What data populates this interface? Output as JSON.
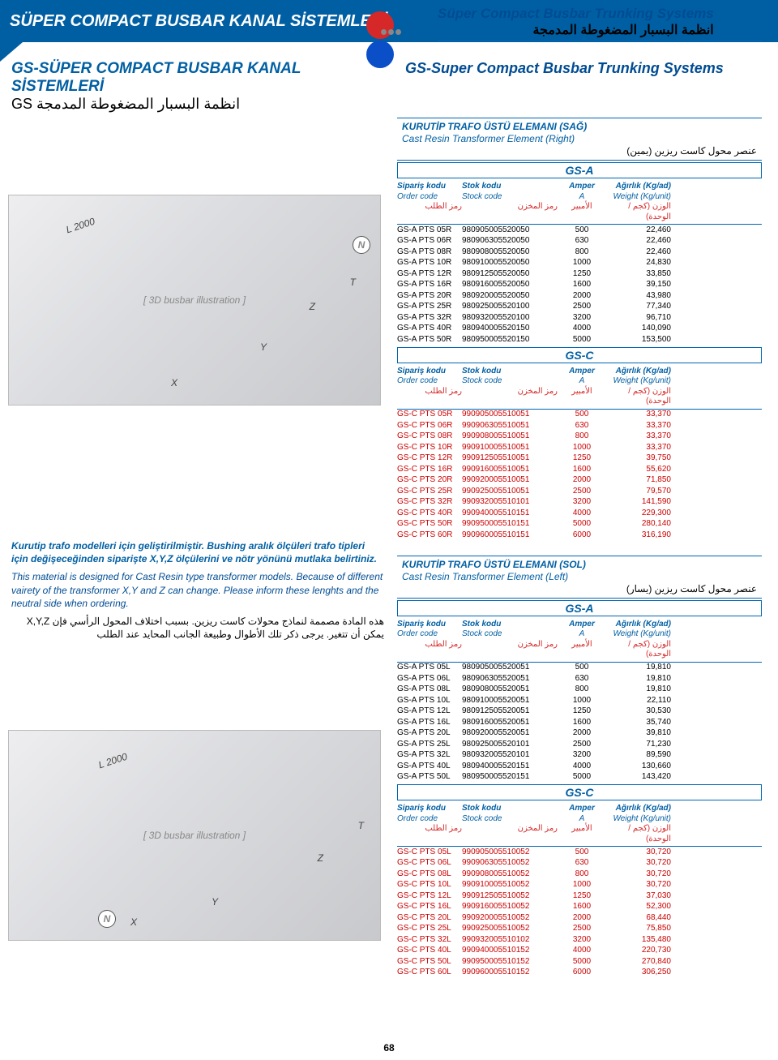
{
  "top_title": "SÜPER COMPACT BUSBAR KANAL SİSTEMLERİ",
  "right_top_en": "Süper Compact Busbar Trunking Systems",
  "right_top_ar": "انظمة البسبار المضغوطة المدمجة",
  "header_left_tr": "GS-SÜPER COMPACT BUSBAR KANAL SİSTEMLERİ",
  "header_left_ar": "انظمة البسبار المضغوطة المدمجة GS",
  "header_right_en": "GS-Super Compact Busbar Trunking Systems",
  "page_number": "68",
  "colors": {
    "brand_blue": "#005fa3",
    "dark_blue": "#004c93",
    "red": "#c00",
    "dot_red": "#d62828",
    "dot_blue": "#0a4fc7"
  },
  "img_labels": {
    "L": "L 2000",
    "N": "N",
    "X": "X",
    "Y": "Y",
    "Z": "Z",
    "T": "T"
  },
  "note": {
    "tr": "Kurutip trafo modelleri için geliştirilmiştir. Bushing aralık ölçüleri trafo tipleri için değişeceğinden siparişte X,Y,Z ölçülerini ve nötr yönünü mutlaka belirtiniz.",
    "en": "This material is designed for Cast Resin type transformer models. Because of different vairety of the transformer X,Y and Z can change. Please inform these lenghts and the neutral side when ordering.",
    "ar": "هذه المادة مصممة لنماذج محولات كاست ريزين. بسبب اختلاف المحول الرأسي فإن X,Y,Z يمكن أن تتغير. يرجى ذكر تلك الأطوال وطبيعة الجانب المحايد عند الطلب"
  },
  "box1": {
    "l1": "KURUTİP TRAFO ÜSTÜ ELEMANI (SAĞ)",
    "l2": "Cast Resin Transformer Element (Right)",
    "l3": "عنصر محول كاست ريزين (يمين)"
  },
  "box2": {
    "l1": "KURUTİP TRAFO ÜSTÜ ELEMANI (SOL)",
    "l2": "Cast Resin Transformer Element (Left)",
    "l3": "عنصر محول كاست ريزين (يسار)"
  },
  "col_heads": {
    "c1": {
      "b": "Sipariş kodu",
      "i": "Order code",
      "a": "رمز الطلب"
    },
    "c2": {
      "b": "Stok kodu",
      "i": "Stock code",
      "a": "رمز المخزن"
    },
    "c3": {
      "b": "Amper",
      "i": "A",
      "a": "الأمبير"
    },
    "c4": {
      "b": "Ağırlık (Kg/ad)",
      "i": "Weight (Kg/unit)",
      "a": "الوزن (كجم /الوحدة)"
    }
  },
  "tag_gsa": "GS-A",
  "tag_gsc": "GS-C",
  "tables": {
    "t1_gsa": [
      [
        "GS-A PTS 05R",
        "980905005520050",
        "500",
        "22,460"
      ],
      [
        "GS-A PTS 06R",
        "980906305520050",
        "630",
        "22,460"
      ],
      [
        "GS-A PTS 08R",
        "980908005520050",
        "800",
        "22,460"
      ],
      [
        "GS-A PTS 10R",
        "980910005520050",
        "1000",
        "24,830"
      ],
      [
        "GS-A PTS 12R",
        "980912505520050",
        "1250",
        "33,850"
      ],
      [
        "GS-A PTS 16R",
        "980916005520050",
        "1600",
        "39,150"
      ],
      [
        "GS-A PTS 20R",
        "980920005520050",
        "2000",
        "43,980"
      ],
      [
        "GS-A PTS 25R",
        "980925005520100",
        "2500",
        "77,340"
      ],
      [
        "GS-A PTS 32R",
        "980932005520100",
        "3200",
        "96,710"
      ],
      [
        "GS-A PTS 40R",
        "980940005520150",
        "4000",
        "140,090"
      ],
      [
        "GS-A PTS 50R",
        "980950005520150",
        "5000",
        "153,500"
      ]
    ],
    "t1_gsc": [
      [
        "GS-C PTS 05R",
        "990905005510051",
        "500",
        "33,370"
      ],
      [
        "GS-C PTS 06R",
        "990906305510051",
        "630",
        "33,370"
      ],
      [
        "GS-C PTS 08R",
        "990908005510051",
        "800",
        "33,370"
      ],
      [
        "GS-C PTS 10R",
        "990910005510051",
        "1000",
        "33,370"
      ],
      [
        "GS-C PTS 12R",
        "990912505510051",
        "1250",
        "39,750"
      ],
      [
        "GS-C PTS 16R",
        "990916005510051",
        "1600",
        "55,620"
      ],
      [
        "GS-C PTS 20R",
        "990920005510051",
        "2000",
        "71,850"
      ],
      [
        "GS-C PTS 25R",
        "990925005510051",
        "2500",
        "79,570"
      ],
      [
        "GS-C PTS 32R",
        "990932005510101",
        "3200",
        "141,590"
      ],
      [
        "GS-C PTS 40R",
        "990940005510151",
        "4000",
        "229,300"
      ],
      [
        "GS-C PTS 50R",
        "990950005510151",
        "5000",
        "280,140"
      ],
      [
        "GS-C PTS 60R",
        "990960005510151",
        "6000",
        "316,190"
      ]
    ],
    "t2_gsa": [
      [
        "GS-A PTS 05L",
        "980905005520051",
        "500",
        "19,810"
      ],
      [
        "GS-A PTS 06L",
        "980906305520051",
        "630",
        "19,810"
      ],
      [
        "GS-A PTS 08L",
        "980908005520051",
        "800",
        "19,810"
      ],
      [
        "GS-A PTS 10L",
        "980910005520051",
        "1000",
        "22,110"
      ],
      [
        "GS-A PTS 12L",
        "980912505520051",
        "1250",
        "30,530"
      ],
      [
        "GS-A PTS 16L",
        "980916005520051",
        "1600",
        "35,740"
      ],
      [
        "GS-A PTS 20L",
        "980920005520051",
        "2000",
        "39,810"
      ],
      [
        "GS-A PTS 25L",
        "980925005520101",
        "2500",
        "71,230"
      ],
      [
        "GS-A PTS 32L",
        "980932005520101",
        "3200",
        "89,590"
      ],
      [
        "GS-A PTS 40L",
        "980940005520151",
        "4000",
        "130,660"
      ],
      [
        "GS-A PTS 50L",
        "980950005520151",
        "5000",
        "143,420"
      ]
    ],
    "t2_gsc": [
      [
        "GS-C PTS 05L",
        "990905005510052",
        "500",
        "30,720"
      ],
      [
        "GS-C PTS 06L",
        "990906305510052",
        "630",
        "30,720"
      ],
      [
        "GS-C PTS 08L",
        "990908005510052",
        "800",
        "30,720"
      ],
      [
        "GS-C PTS 10L",
        "990910005510052",
        "1000",
        "30,720"
      ],
      [
        "GS-C PTS 12L",
        "990912505510052",
        "1250",
        "37,030"
      ],
      [
        "GS-C PTS 16L",
        "990916005510052",
        "1600",
        "52,300"
      ],
      [
        "GS-C PTS 20L",
        "990920005510052",
        "2000",
        "68,440"
      ],
      [
        "GS-C PTS 25L",
        "990925005510052",
        "2500",
        "75,850"
      ],
      [
        "GS-C PTS 32L",
        "990932005510102",
        "3200",
        "135,480"
      ],
      [
        "GS-C PTS 40L",
        "990940005510152",
        "4000",
        "220,730"
      ],
      [
        "GS-C PTS 50L",
        "990950005510152",
        "5000",
        "270,840"
      ],
      [
        "GS-C PTS 60L",
        "990960005510152",
        "6000",
        "306,250"
      ]
    ]
  }
}
